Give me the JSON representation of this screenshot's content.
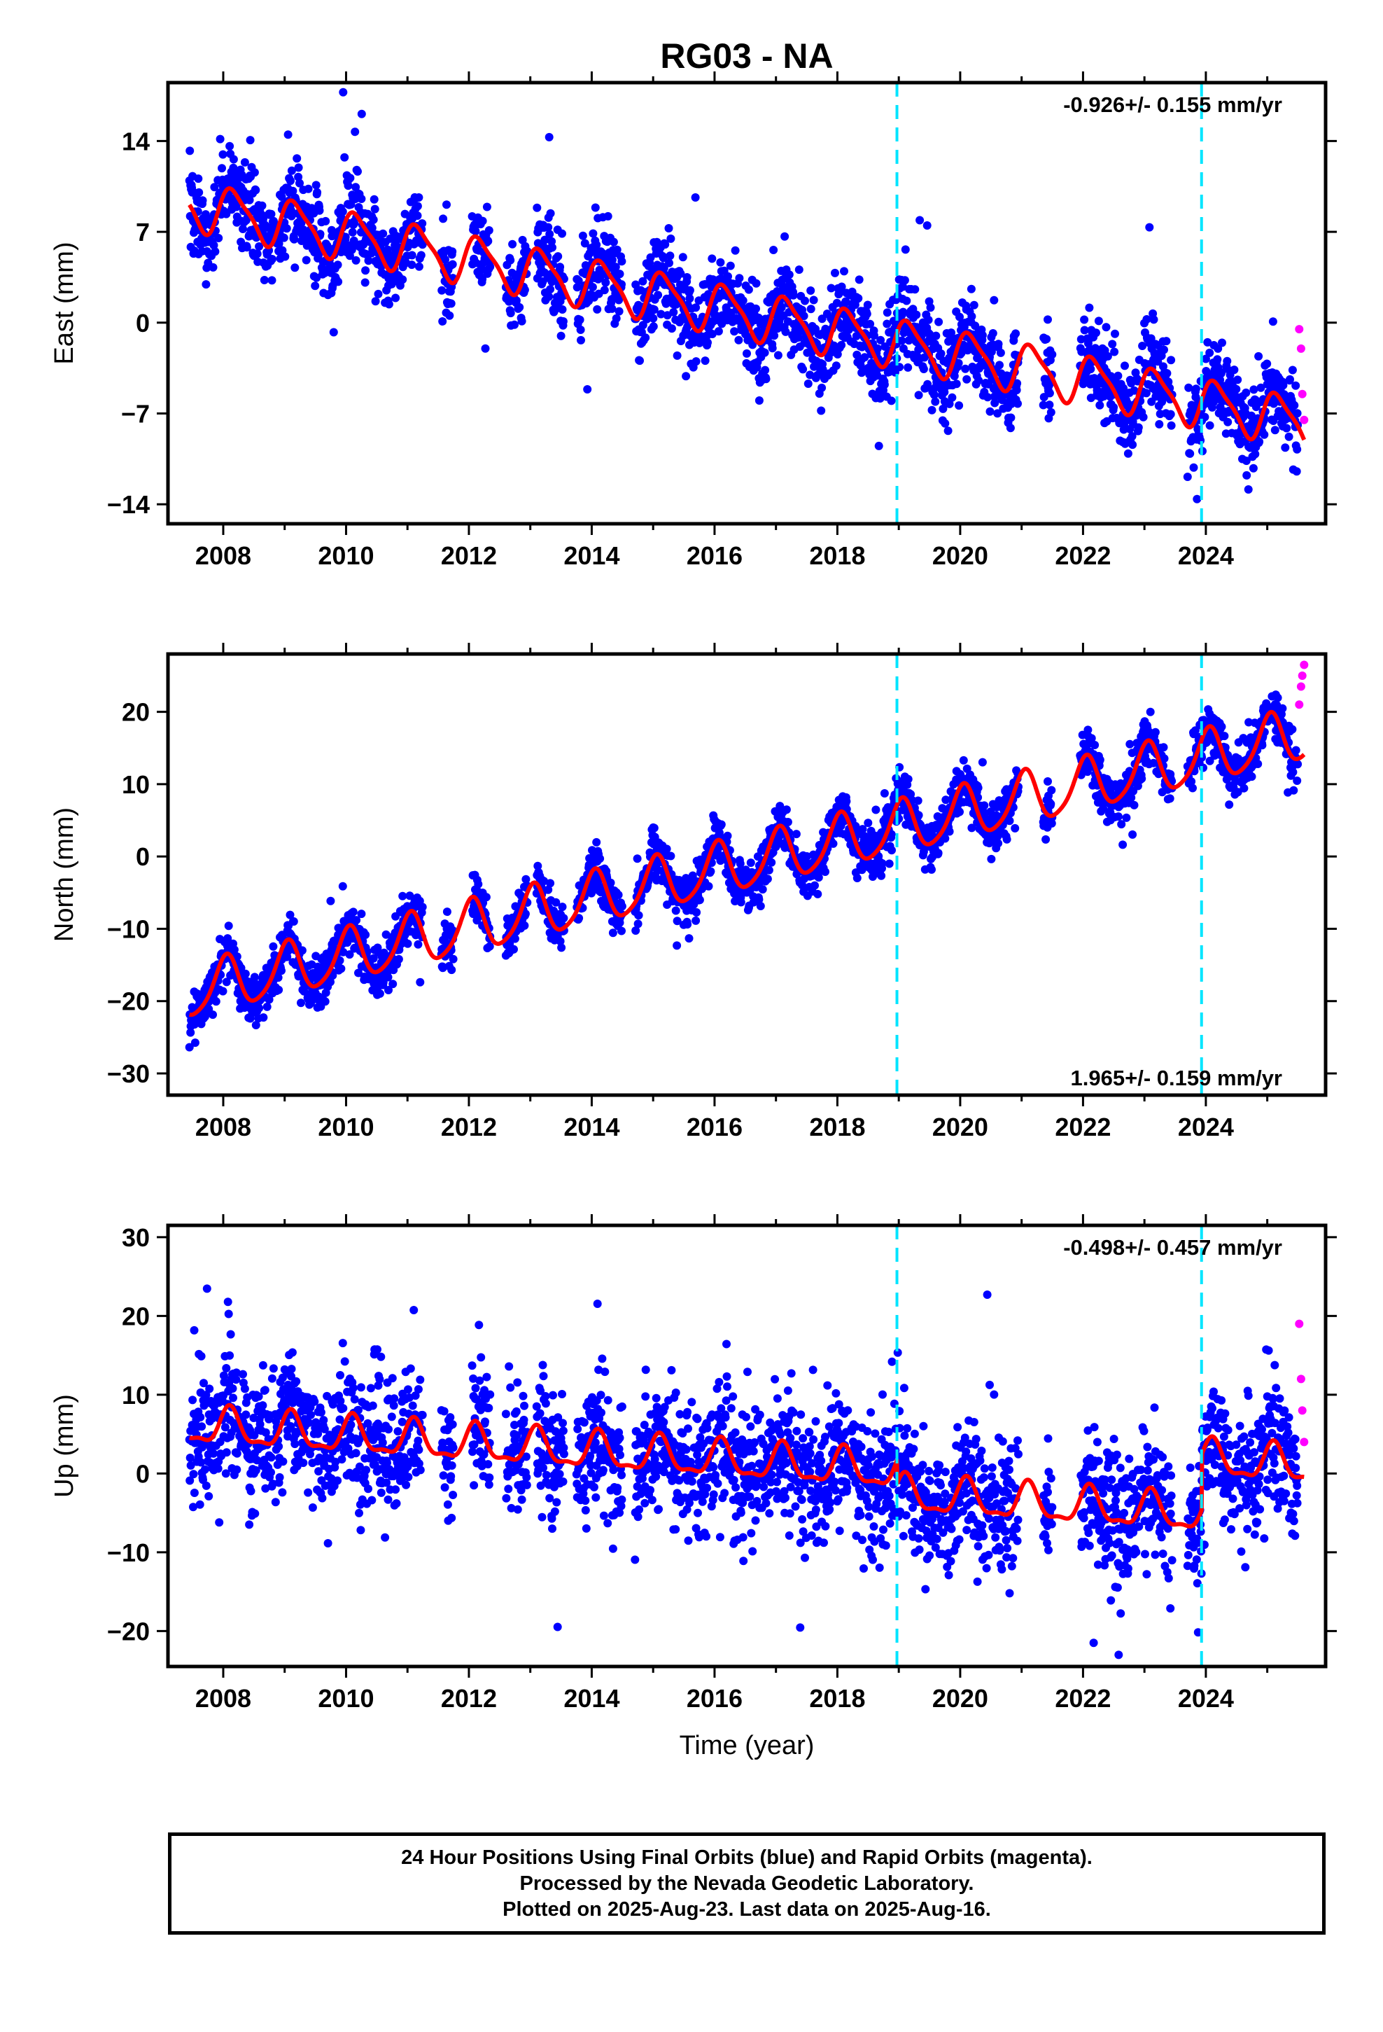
{
  "title": "RG03 - NA",
  "colors": {
    "final_orbits": "#0000ff",
    "rapid_orbits": "#ff00ff",
    "model_fit": "#ff0000",
    "equipment_change": "#00e5ff",
    "axes": "#000000"
  },
  "xlabel": "Time (year)",
  "notes": [
    "24 Hour Positions Using Final Orbits (blue) and Rapid Orbits (magenta).",
    "Processed by the Nevada Geodetic Laboratory.",
    "Plotted on 2025-Aug-23. Last data on 2025-Aug-16."
  ],
  "chart_data": [
    {
      "type": "scatter",
      "component": "east",
      "ylabel": "East (mm)",
      "rate_label": "-0.926+/- 0.155 mm/yr",
      "rate_position": "top-right",
      "xlim": [
        2007.1,
        2025.95
      ],
      "ylim": [
        -15.5,
        18.5
      ],
      "x_ticks": [
        2008,
        2010,
        2012,
        2014,
        2016,
        2018,
        2020,
        2022,
        2024
      ],
      "x_tick_labels": [
        "2008",
        "2010",
        "2012",
        "2014",
        "2016",
        "2018",
        "2020",
        "2022",
        "2024"
      ],
      "y_ticks": [
        -14,
        -7,
        0,
        7,
        14
      ],
      "y_tick_labels": [
        "−14",
        "−7",
        "0",
        "7",
        "14"
      ],
      "grid": false,
      "vertical_lines": [
        2018.97,
        2023.93
      ],
      "fit_model": {
        "t0": 2016.5,
        "offset": 0.7,
        "rate": -0.926,
        "annual_amplitude": 1.8,
        "annual_phase": 0.45,
        "semiannual_amplitude": 0.45,
        "semiannual_phase": 1.2,
        "steps": [
          {
            "x": 2018.97,
            "value": 0.0
          },
          {
            "x": 2023.93,
            "value": 0.0
          }
        ]
      },
      "scatter_std": 1.7,
      "rapid_points": {
        "x": [
          2025.52,
          2025.55,
          2025.57,
          2025.6
        ],
        "y": [
          -0.5,
          -2.0,
          -5.5,
          -7.5
        ]
      }
    },
    {
      "type": "scatter",
      "component": "north",
      "ylabel": "North (mm)",
      "rate_label": "1.965+/- 0.159 mm/yr",
      "rate_position": "bottom-right",
      "xlim": [
        2007.1,
        2025.95
      ],
      "ylim": [
        -33,
        28
      ],
      "x_ticks": [
        2008,
        2010,
        2012,
        2014,
        2016,
        2018,
        2020,
        2022,
        2024
      ],
      "x_tick_labels": [
        "2008",
        "2010",
        "2012",
        "2014",
        "2016",
        "2018",
        "2020",
        "2022",
        "2024"
      ],
      "y_ticks": [
        -30,
        -20,
        -10,
        0,
        10,
        20
      ],
      "y_tick_labels": [
        "−30",
        "−20",
        "−10",
        "0",
        "10",
        "20"
      ],
      "grid": false,
      "vertical_lines": [
        2018.97,
        2023.93
      ],
      "fit_model": {
        "t0": 2016.5,
        "offset": -1.0,
        "rate": 1.965,
        "annual_amplitude": 3.6,
        "annual_phase": 1.3,
        "semiannual_amplitude": 0.6,
        "semiannual_phase": 0.5,
        "steps": [
          {
            "x": 2018.97,
            "value": 0.0
          },
          {
            "x": 2023.93,
            "value": 0.0
          }
        ]
      },
      "scatter_std": 1.7,
      "rapid_points": {
        "x": [
          2025.52,
          2025.55,
          2025.57,
          2025.6
        ],
        "y": [
          21.0,
          23.5,
          25.0,
          26.5
        ]
      }
    },
    {
      "type": "scatter",
      "component": "up",
      "ylabel": "Up (mm)",
      "rate_label": "-0.498+/- 0.457 mm/yr",
      "rate_position": "top-right",
      "xlim": [
        2007.1,
        2025.95
      ],
      "ylim": [
        -24.5,
        31.5
      ],
      "x_ticks": [
        2008,
        2010,
        2012,
        2014,
        2016,
        2018,
        2020,
        2022,
        2024
      ],
      "x_tick_labels": [
        "2008",
        "2010",
        "2012",
        "2014",
        "2016",
        "2018",
        "2020",
        "2022",
        "2024"
      ],
      "y_ticks": [
        -20,
        -10,
        0,
        10,
        20,
        30
      ],
      "y_tick_labels": [
        "−20",
        "−10",
        "0",
        "10",
        "20",
        "30"
      ],
      "grid": false,
      "vertical_lines": [
        2018.97,
        2023.93
      ],
      "fit_model": {
        "t0": 2016.5,
        "offset": 1.5,
        "rate": -0.498,
        "annual_amplitude": 2.2,
        "annual_phase": 0.9,
        "semiannual_amplitude": 0.8,
        "semiannual_phase": 0.3,
        "steps": [
          {
            "x": 2018.97,
            "value": -3.0
          },
          {
            "x": 2023.93,
            "value": 7.0
          }
        ]
      },
      "scatter_std": 4.2,
      "rapid_points": {
        "x": [
          2025.52,
          2025.55,
          2025.57,
          2025.6
        ],
        "y": [
          19.0,
          12.0,
          8.0,
          4.0
        ]
      }
    }
  ]
}
